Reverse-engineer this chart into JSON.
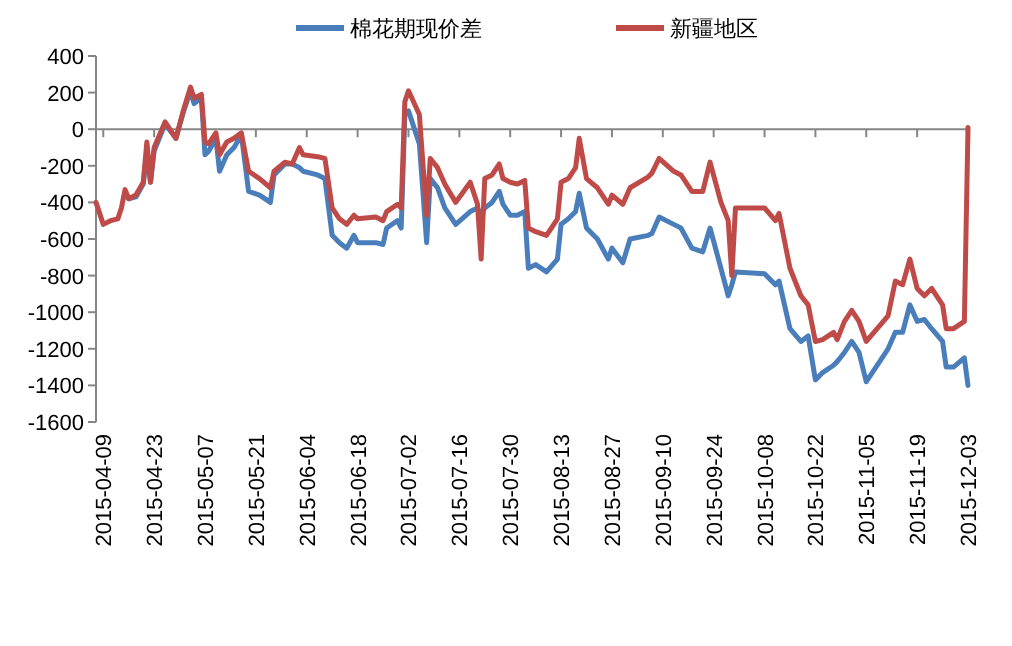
{
  "chart_data": {
    "type": "line",
    "legend": "top",
    "xlim": [
      "2015-04-07",
      "2015-12-03"
    ],
    "xticks": [
      "2015-04-09",
      "2015-04-23",
      "2015-05-07",
      "2015-05-21",
      "2015-06-04",
      "2015-06-18",
      "2015-07-02",
      "2015-07-16",
      "2015-07-30",
      "2015-08-13",
      "2015-08-27",
      "2015-09-10",
      "2015-09-24",
      "2015-10-08",
      "2015-10-22",
      "2015-11-05",
      "2015-11-19",
      "2015-12-03"
    ],
    "ylim": [
      -1600,
      400
    ],
    "yticks": [
      400,
      200,
      0,
      -200,
      -400,
      -600,
      -800,
      -1000,
      -1200,
      -1400,
      -1600
    ],
    "x": [
      "2015-04-07",
      "2015-04-09",
      "2015-04-11",
      "2015-04-13",
      "2015-04-14",
      "2015-04-15",
      "2015-04-16",
      "2015-04-18",
      "2015-04-20",
      "2015-04-21",
      "2015-04-22",
      "2015-04-23",
      "2015-04-26",
      "2015-04-29",
      "2015-05-01",
      "2015-05-03",
      "2015-05-04",
      "2015-05-06",
      "2015-05-07",
      "2015-05-08",
      "2015-05-10",
      "2015-05-11",
      "2015-05-13",
      "2015-05-15",
      "2015-05-17",
      "2015-05-19",
      "2015-05-22",
      "2015-05-25",
      "2015-05-26",
      "2015-05-29",
      "2015-05-31",
      "2015-06-02",
      "2015-06-03",
      "2015-06-07",
      "2015-06-09",
      "2015-06-11",
      "2015-06-13",
      "2015-06-15",
      "2015-06-17",
      "2015-06-18",
      "2015-06-23",
      "2015-06-25",
      "2015-06-26",
      "2015-06-29",
      "2015-06-30",
      "2015-07-01",
      "2015-07-02",
      "2015-07-05",
      "2015-07-07",
      "2015-07-08",
      "2015-07-10",
      "2015-07-12",
      "2015-07-15",
      "2015-07-19",
      "2015-07-21",
      "2015-07-22",
      "2015-07-23",
      "2015-07-25",
      "2015-07-27",
      "2015-07-28",
      "2015-07-30",
      "2015-08-01",
      "2015-08-03",
      "2015-08-04",
      "2015-08-06",
      "2015-08-09",
      "2015-08-12",
      "2015-08-13",
      "2015-08-15",
      "2015-08-17",
      "2015-08-18",
      "2015-08-20",
      "2015-08-23",
      "2015-08-26",
      "2015-08-27",
      "2015-08-30",
      "2015-09-01",
      "2015-09-06",
      "2015-09-07",
      "2015-09-09",
      "2015-09-13",
      "2015-09-15",
      "2015-09-18",
      "2015-09-21",
      "2015-09-23",
      "2015-09-26",
      "2015-09-28",
      "2015-09-29",
      "2015-09-30",
      "2015-10-08",
      "2015-10-11",
      "2015-10-12",
      "2015-10-15",
      "2015-10-18",
      "2015-10-20",
      "2015-10-22",
      "2015-10-24",
      "2015-10-27",
      "2015-10-28",
      "2015-10-30",
      "2015-11-01",
      "2015-11-03",
      "2015-11-05",
      "2015-11-08",
      "2015-11-11",
      "2015-11-13",
      "2015-11-15",
      "2015-11-17",
      "2015-11-19",
      "2015-11-21",
      "2015-11-23",
      "2015-11-26",
      "2015-11-27",
      "2015-11-29",
      "2015-12-02",
      "2015-12-03"
    ],
    "series": [
      {
        "name": "棉花期现价差",
        "color": "#4a7ebb",
        "values": [
          null,
          null,
          null,
          null,
          null,
          -360,
          -380,
          -370,
          -300,
          -130,
          -290,
          -120,
          30,
          -50,
          90,
          210,
          140,
          170,
          -140,
          -120,
          -50,
          -230,
          -140,
          -100,
          -30,
          -340,
          -360,
          -400,
          -250,
          -190,
          -190,
          -210,
          -230,
          -250,
          -270,
          -580,
          -620,
          -650,
          -580,
          -620,
          -620,
          -630,
          -540,
          -500,
          -540,
          80,
          100,
          -80,
          -620,
          -270,
          -320,
          -430,
          -520,
          -450,
          -430,
          -470,
          -430,
          -400,
          -340,
          -410,
          -470,
          -470,
          -450,
          -760,
          -740,
          -780,
          -710,
          -520,
          -490,
          -450,
          -350,
          -540,
          -600,
          -710,
          -650,
          -730,
          -600,
          -580,
          -570,
          -480,
          -520,
          -540,
          -650,
          -670,
          -540,
          -760,
          -910,
          -850,
          -780,
          -790,
          -850,
          -830,
          -1090,
          -1160,
          -1130,
          -1370,
          -1330,
          -1290,
          -1270,
          -1220,
          -1160,
          -1220,
          -1380,
          -1290,
          -1200,
          -1110,
          -1110,
          -960,
          -1050,
          -1040,
          -1090,
          -1160,
          -1300,
          -1300,
          -1250,
          -1400
        ]
      },
      {
        "name": "新疆地区",
        "color": "#be4b48",
        "values": [
          -400,
          -520,
          -500,
          -490,
          -430,
          -330,
          -380,
          -360,
          -290,
          -70,
          -290,
          -100,
          40,
          -50,
          100,
          230,
          170,
          190,
          -70,
          -80,
          -20,
          -140,
          -70,
          -50,
          -20,
          -230,
          -270,
          -320,
          -230,
          -180,
          -190,
          -100,
          -140,
          -150,
          -160,
          -430,
          -490,
          -520,
          -470,
          -490,
          -480,
          -500,
          -450,
          -410,
          -430,
          150,
          210,
          80,
          -470,
          -160,
          -210,
          -300,
          -400,
          -290,
          -410,
          -710,
          -270,
          -250,
          -190,
          -270,
          -290,
          -300,
          -280,
          -540,
          -560,
          -580,
          -490,
          -290,
          -270,
          -210,
          -50,
          -270,
          -320,
          -410,
          -360,
          -410,
          -320,
          -260,
          -240,
          -160,
          -230,
          -250,
          -340,
          -340,
          -180,
          -400,
          -500,
          -800,
          -430,
          -430,
          -500,
          -460,
          -760,
          -910,
          -960,
          -1160,
          -1150,
          -1110,
          -1150,
          -1050,
          -990,
          -1050,
          -1160,
          -1090,
          -1020,
          -830,
          -850,
          -710,
          -870,
          -910,
          -870,
          -960,
          -1090,
          -1090,
          -1050,
          10
        ]
      }
    ]
  }
}
